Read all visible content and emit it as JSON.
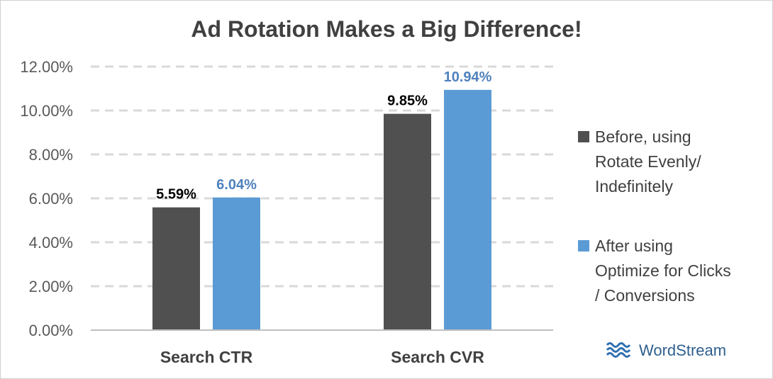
{
  "brand": {
    "name": "WordStream",
    "logo_icon": "wave-logo-icon",
    "color": "#2f5f8f"
  },
  "chart_data": {
    "type": "bar",
    "title": "Ad Rotation Makes a Big Difference!",
    "categories": [
      "Search CTR",
      "Search CVR"
    ],
    "series": [
      {
        "name": "Before, using Rotate Evenly/ Indefinitely",
        "legend_lines": [
          "Before, using",
          "Rotate Evenly/",
          "Indefinitely"
        ],
        "values": [
          5.59,
          9.85
        ],
        "labels": [
          "5.59%",
          "9.85%"
        ],
        "color": "#505050",
        "label_color": "#000000"
      },
      {
        "name": "After using Optimize for Clicks / Conversions",
        "legend_lines": [
          "After using",
          "Optimize for Clicks",
          "/ Conversions"
        ],
        "values": [
          6.04,
          10.94
        ],
        "labels": [
          "6.04%",
          "10.94%"
        ],
        "color": "#5b9bd5",
        "label_color": "#4f81bd"
      }
    ],
    "ylim": [
      0,
      12
    ],
    "yticks": [
      "0.00%",
      "2.00%",
      "4.00%",
      "6.00%",
      "8.00%",
      "10.00%",
      "12.00%"
    ],
    "ytick_values": [
      0,
      2,
      4,
      6,
      8,
      10,
      12
    ],
    "grid": true,
    "legend_position": "right"
  }
}
